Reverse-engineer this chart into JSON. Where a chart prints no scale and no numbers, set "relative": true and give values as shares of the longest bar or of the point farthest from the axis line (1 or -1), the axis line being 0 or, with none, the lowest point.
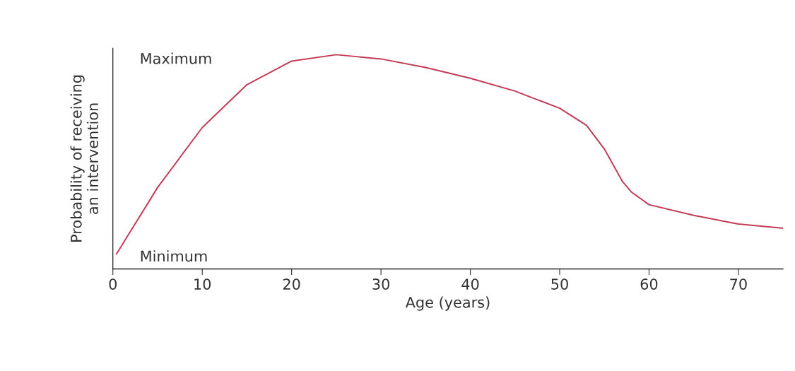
{
  "chart_data": {
    "type": "line",
    "relative": true,
    "xlabel": "Age (years)",
    "ylabel": "Probability of receiving\nan intervention",
    "annotations": [
      "Maximum",
      "Minimum"
    ],
    "x": [
      0.4,
      5,
      10,
      15,
      20,
      25,
      30,
      35,
      40,
      45,
      50,
      53,
      55,
      57,
      58,
      60,
      65,
      70,
      75
    ],
    "series": [
      {
        "color": "#c23a55",
        "values": [
          0.07,
          0.38,
          0.66,
          0.86,
          0.97,
          1.0,
          0.98,
          0.94,
          0.89,
          0.83,
          0.75,
          0.67,
          0.56,
          0.41,
          0.36,
          0.3,
          0.25,
          0.21,
          0.19
        ]
      }
    ],
    "xlim": [
      0,
      75
    ],
    "xticks": [
      0,
      10,
      20,
      30,
      40,
      50,
      60,
      70
    ],
    "grid": false,
    "marker": "none",
    "line_style": "solid"
  }
}
